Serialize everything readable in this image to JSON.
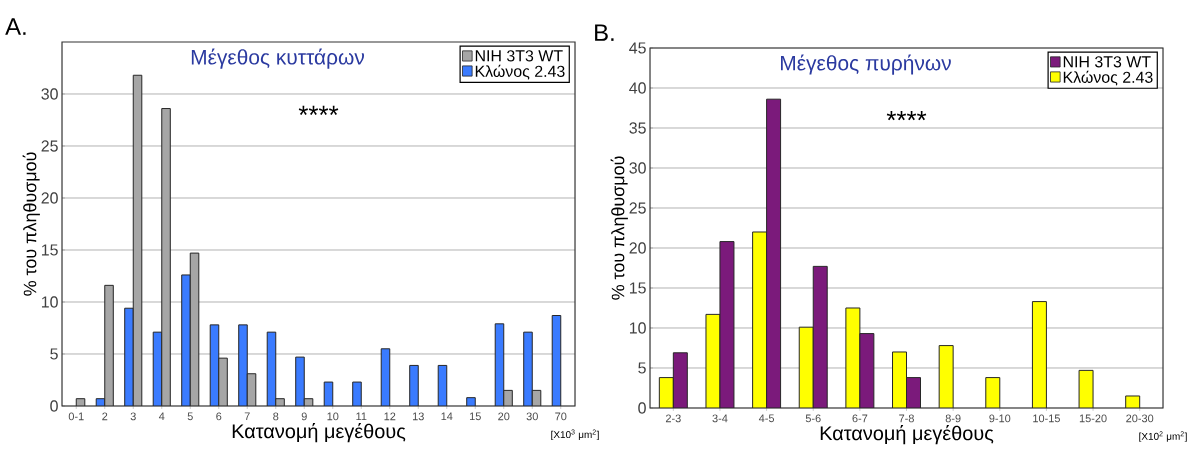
{
  "chart_data": [
    {
      "type": "bar",
      "title": "Μέγεθος κυττάρων",
      "xlabel": "Κατανομή μεγέθους",
      "ylabel": "% του πληθυσμού",
      "annotations": [
        "****",
        "A.",
        "[X10$^{3}$ μm$^{2}$]"
      ],
      "categories": [
        "0-1",
        "2",
        "3",
        "4",
        "5",
        "6",
        "7",
        "8",
        "9",
        "10",
        "11",
        "12",
        "13",
        "14",
        "15",
        "20",
        "30",
        "70"
      ],
      "series": [
        {
          "name": "NIH 3T3 WT",
          "color": "#a6a6a6",
          "values": [
            0.7,
            11.6,
            31.8,
            28.6,
            14.7,
            4.6,
            3.1,
            0.7,
            0.7,
            null,
            null,
            null,
            null,
            null,
            null,
            1.5,
            1.5,
            null
          ]
        },
        {
          "name": "Κλώνος 2.43",
          "color": "#3a7bff",
          "values": [
            null,
            0.7,
            9.4,
            7.1,
            12.6,
            7.8,
            7.8,
            7.1,
            4.7,
            2.3,
            2.3,
            5.5,
            3.9,
            3.9,
            0.8,
            7.9,
            7.1,
            8.7
          ]
        }
      ],
      "ylim": [
        0,
        35
      ],
      "yticks": [
        0,
        5,
        10,
        15,
        20,
        25,
        30
      ],
      "grid": "y",
      "legend": "top right"
    },
    {
      "type": "bar",
      "title": "Μέγεθος πυρήνων",
      "xlabel": "Κατανομή μεγέθους",
      "ylabel": "% του πληθυσμού",
      "annotations": [
        "****",
        "B.",
        "[X10$^{2}$ μm$^{2}$]"
      ],
      "categories": [
        "2-3",
        "3-4",
        "4-5",
        "5-6",
        "6-7",
        "7-8",
        "8-9",
        "9-10",
        "10-15",
        "15-20",
        "20-30"
      ],
      "series": [
        {
          "name": "NIH 3T3 WT",
          "color": "#7b1a7b",
          "values": [
            6.9,
            20.8,
            38.6,
            17.7,
            9.3,
            3.8,
            null,
            null,
            null,
            null,
            null
          ]
        },
        {
          "name": "Κλώνος 2.43",
          "color": "#ffff00",
          "values": [
            3.8,
            11.7,
            22.0,
            10.1,
            12.5,
            7.0,
            7.8,
            3.8,
            13.3,
            4.7,
            1.5
          ]
        }
      ],
      "ylim": [
        0,
        45
      ],
      "yticks": [
        0,
        5,
        10,
        15,
        20,
        25,
        30,
        35,
        40,
        45
      ],
      "grid": "y",
      "legend": "top right"
    }
  ]
}
